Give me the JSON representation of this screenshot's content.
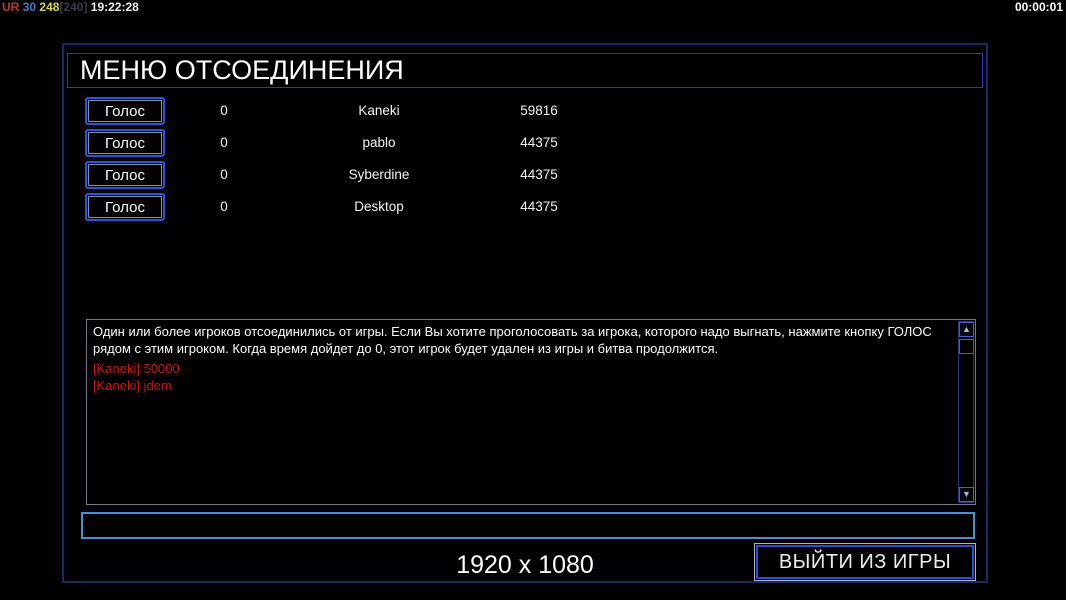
{
  "statusbar": {
    "ur_label": "UR",
    "ur_value": "30",
    "fps": "248",
    "fps_cap": "[240]",
    "clock": "19:22:28",
    "match_timer": "00:00:01"
  },
  "dialog": {
    "title": "МЕНЮ ОТСОЕДИНЕНИЯ",
    "players": [
      {
        "vote_label": "Голос",
        "votes": "0",
        "name": "Kaneki",
        "score": "59816"
      },
      {
        "vote_label": "Голос",
        "votes": "0",
        "name": "pablo",
        "score": "44375"
      },
      {
        "vote_label": "Голос",
        "votes": "0",
        "name": "Syberdine",
        "score": "44375"
      },
      {
        "vote_label": "Голос",
        "votes": "0",
        "name": "Desktop",
        "score": "44375"
      }
    ],
    "message": "Один или более игроков отсоединились от игры. Если Вы хотите проголосовать за игрока, которого надо выгнать, нажмите кнопку ГОЛОС рядом с этим игроком. Когда время дойдет до 0, этот игрок будет удален из игры и битва продолжится.",
    "chat_lines": [
      "[Kaneki] 50000",
      "[Kaneki] jdem"
    ],
    "chat_input_value": "",
    "resolution": "1920 x 1080",
    "exit_label": "ВЫЙТИ ИЗ ИГРЫ",
    "scrollbar": {
      "up_icon": "▲",
      "down_icon": "▼"
    }
  },
  "colors": {
    "accent_blue": "#2a55e0",
    "input_border_blue": "#4a8fd4",
    "window_border_navy": "#1b2866",
    "title_border_blue": "#2a3ab8",
    "message_border_gray": "#78788a",
    "chat_red": "#d01212",
    "status_ur_red": "#c23434",
    "status_value_blue": "#4878c8",
    "status_fps_yellow": "#d8d832",
    "status_cap_gray": "#3c3c46"
  }
}
